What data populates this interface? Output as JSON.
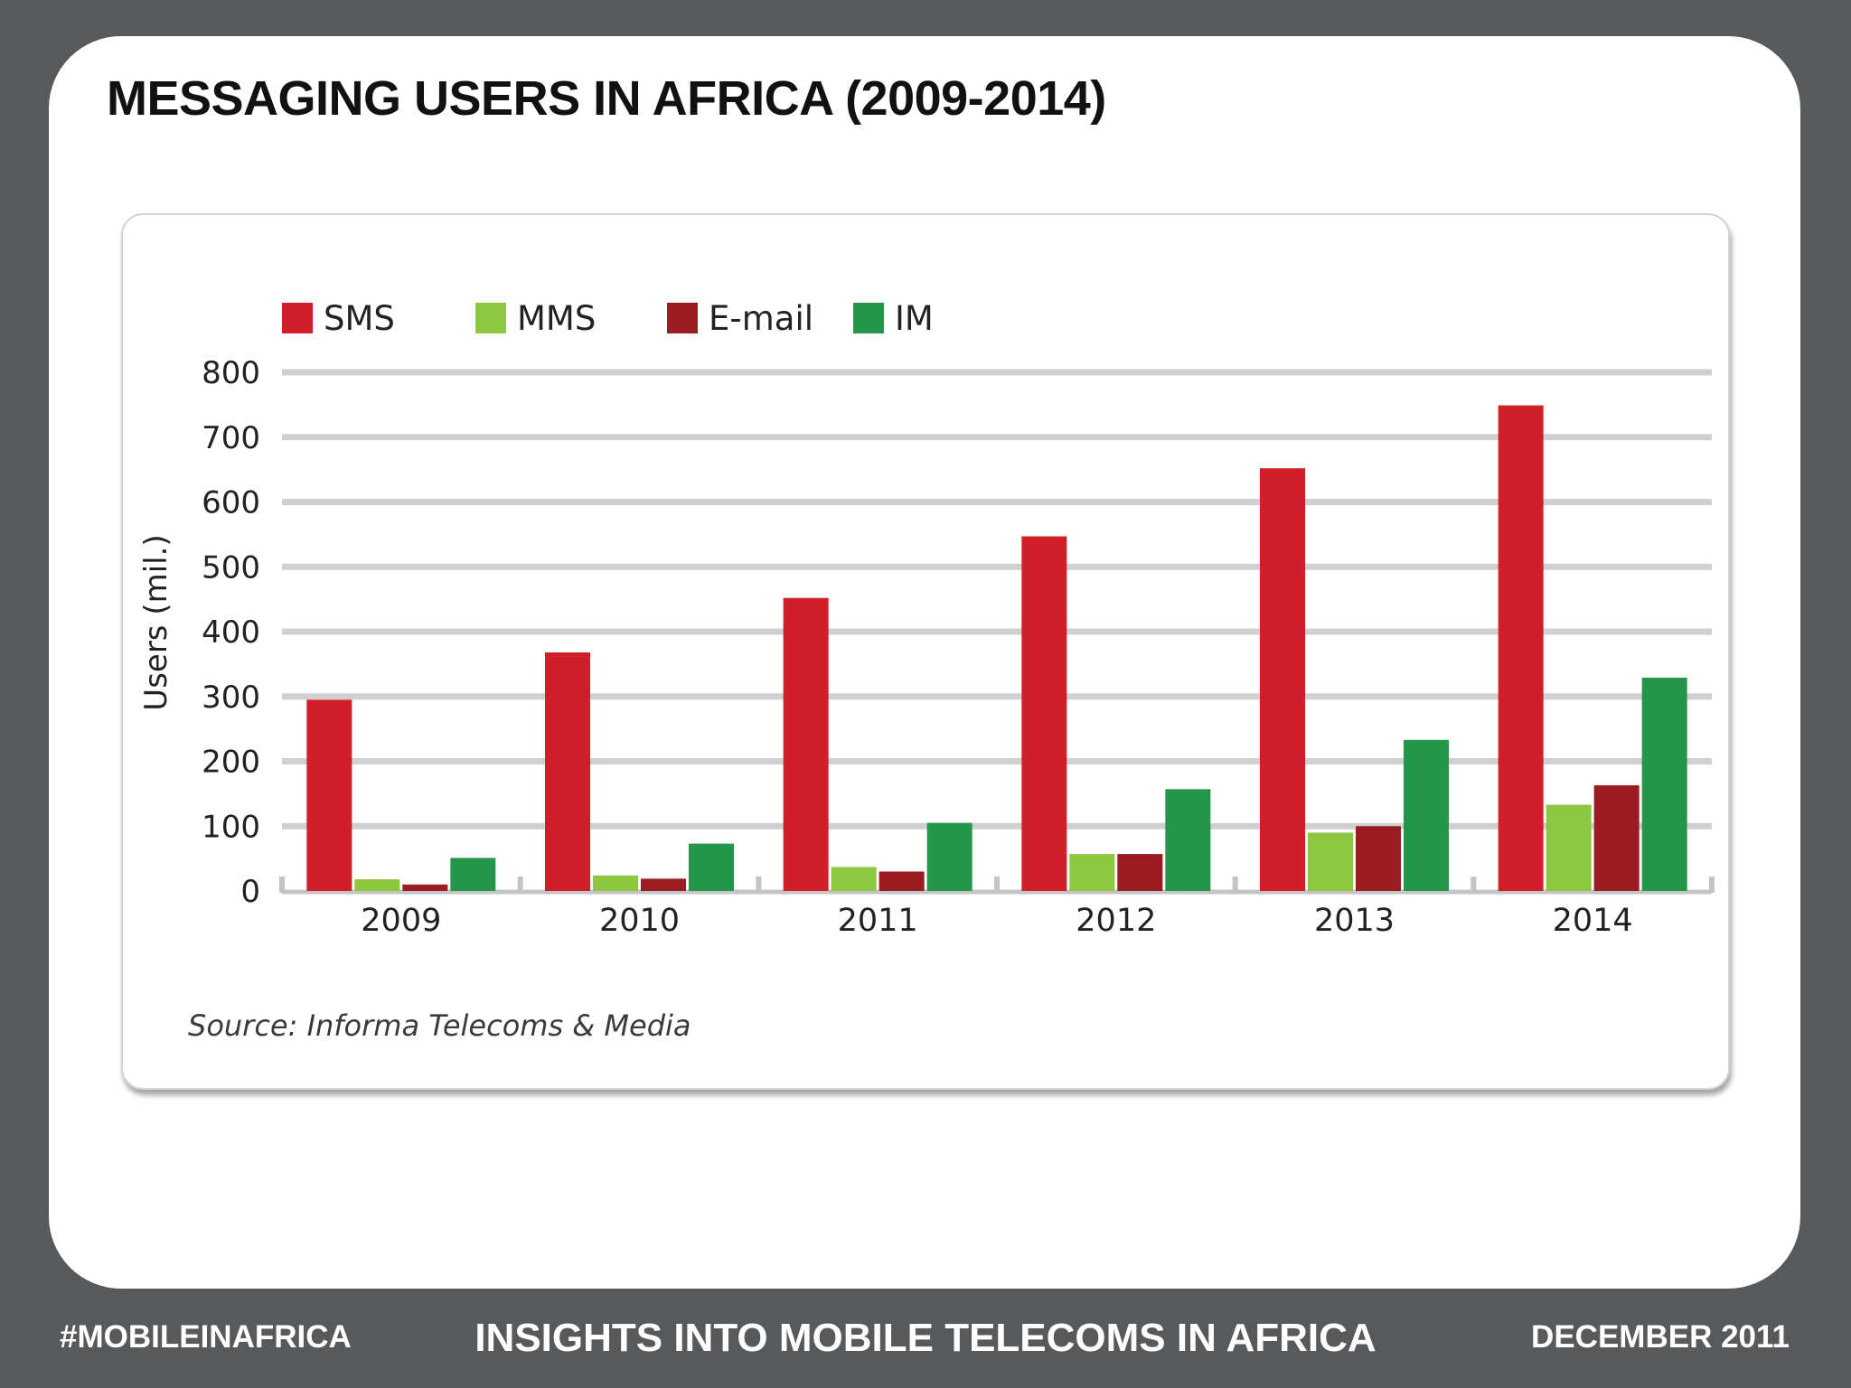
{
  "slide": {
    "title": "MESSAGING USERS IN AFRICA (2009-2014)"
  },
  "chart_data": {
    "type": "bar",
    "title": "",
    "xlabel": "",
    "ylabel": "Users (mil.)",
    "ylim": [
      0,
      800
    ],
    "yticks": [
      0,
      100,
      200,
      300,
      400,
      500,
      600,
      700,
      800
    ],
    "grid": true,
    "legend_position": "top-left",
    "categories": [
      "2009",
      "2010",
      "2011",
      "2012",
      "2013",
      "2014"
    ],
    "series": [
      {
        "name": "SMS",
        "color": "#d11f2a",
        "values": [
          295,
          368,
          452,
          547,
          652,
          749
        ]
      },
      {
        "name": "MMS",
        "color": "#8dc63f",
        "values": [
          18,
          24,
          37,
          57,
          90,
          133
        ]
      },
      {
        "name": "E-mail",
        "color": "#9b1b22",
        "values": [
          10,
          19,
          30,
          57,
          100,
          163
        ]
      },
      {
        "name": "IM",
        "color": "#23964a",
        "values": [
          51,
          73,
          105,
          157,
          233,
          329
        ]
      }
    ],
    "source": "Source: Informa Telecoms & Media"
  },
  "footer": {
    "hashtag": "#MOBILEINAFRICA",
    "center": "INSIGHTS INTO MOBILE TELECOMS IN AFRICA",
    "date": "DECEMBER 2011"
  }
}
